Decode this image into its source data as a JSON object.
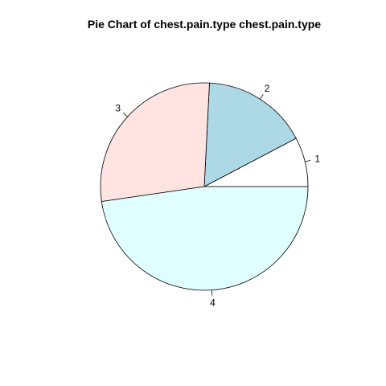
{
  "chart_data": {
    "type": "pie",
    "title": "Pie Chart of chest.pain.type chest.pain.type",
    "labels": [
      "1",
      "2",
      "3",
      "4"
    ],
    "values": [
      7.7,
      16.5,
      28.1,
      47.7
    ],
    "colors": [
      "#FFFFFF",
      "#ADD8E6",
      "#FFE4E1",
      "#E0FFFF"
    ],
    "start_angle_deg": 0,
    "direction": "counterclockwise"
  }
}
